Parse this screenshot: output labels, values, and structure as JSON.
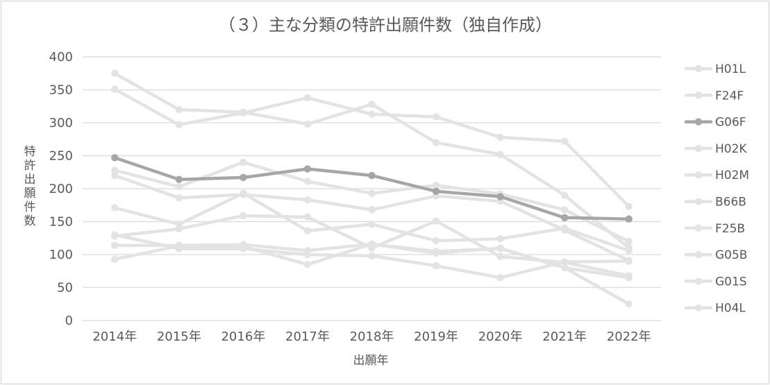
{
  "chart_data": {
    "type": "line",
    "title": "（３）主な分類の特許出願件数（独自作成）",
    "xlabel": "出願年",
    "ylabel": "特許出願件数",
    "categories": [
      "2014年",
      "2015年",
      "2016年",
      "2017年",
      "2018年",
      "2019年",
      "2020年",
      "2021年",
      "2022年"
    ],
    "ylim": [
      0,
      400
    ],
    "yticks": [
      0,
      50,
      100,
      150,
      200,
      250,
      300,
      350,
      400
    ],
    "grid": true,
    "legend_position": "right",
    "series": [
      {
        "name": "H01L",
        "color": "#e3e3e3",
        "values": [
          375,
          320,
          316,
          298,
          328,
          270,
          252,
          190,
          110
        ]
      },
      {
        "name": "F24F",
        "color": "#e3e3e3",
        "values": [
          351,
          297,
          315,
          338,
          313,
          309,
          278,
          272,
          173
        ]
      },
      {
        "name": "G06F",
        "color": "#a6a6a6",
        "values": [
          247,
          214,
          217,
          230,
          220,
          196,
          188,
          156,
          154
        ]
      },
      {
        "name": "H02K",
        "color": "#e3e3e3",
        "values": [
          228,
          203,
          240,
          211,
          193,
          205,
          192,
          168,
          120
        ]
      },
      {
        "name": "H02M",
        "color": "#e3e3e3",
        "values": [
          220,
          186,
          191,
          183,
          168,
          189,
          181,
          137,
          91
        ]
      },
      {
        "name": "B66B",
        "color": "#e3e3e3",
        "values": [
          171,
          146,
          193,
          136,
          146,
          121,
          124,
          140,
          106
        ]
      },
      {
        "name": "F25B",
        "color": "#e3e3e3",
        "values": [
          128,
          139,
          159,
          157,
          110,
          151,
          97,
          88,
          68
        ]
      },
      {
        "name": "G05B",
        "color": "#e3e3e3",
        "values": [
          130,
          109,
          109,
          100,
          98,
          83,
          65,
          89,
          90
        ]
      },
      {
        "name": "G01S",
        "color": "#e3e3e3",
        "values": [
          114,
          114,
          115,
          106,
          116,
          105,
          109,
          80,
          25
        ]
      },
      {
        "name": "H04L",
        "color": "#e3e3e3",
        "values": [
          93,
          113,
          112,
          85,
          116,
          102,
          110,
          80,
          65
        ]
      }
    ]
  }
}
